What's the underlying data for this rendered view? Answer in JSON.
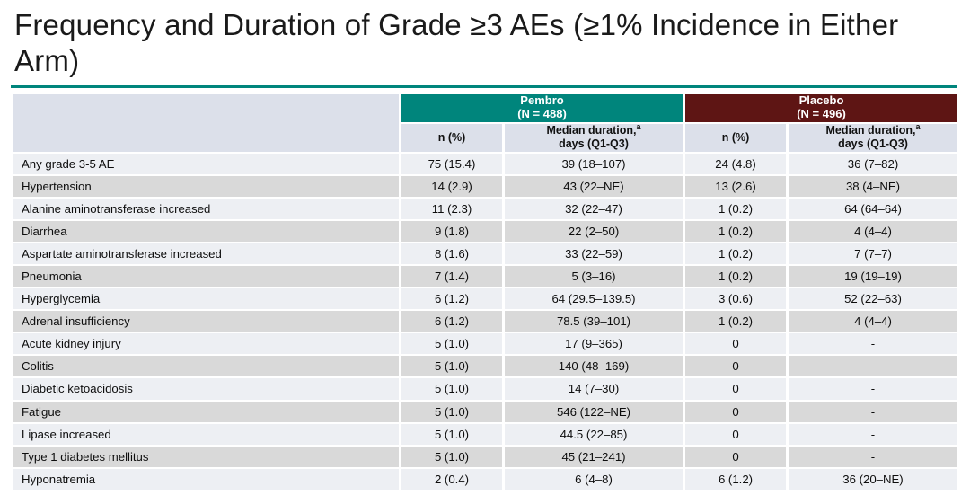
{
  "slide": {
    "title": "Frequency and Duration of Grade ≥3 AEs (≥1% Incidence in Either Arm)",
    "accent_color": "#00857C",
    "pembro_header_color": "#00857C",
    "placebo_header_color": "#5E1514",
    "subheader_bg_color": "#DCE0EA",
    "row_light_color": "#EDEFF3",
    "row_gray_color": "#D9D9D9"
  },
  "table": {
    "groups": [
      {
        "label": "Pembro",
        "sublabel": "(N = 488)"
      },
      {
        "label": "Placebo",
        "sublabel": "(N = 496)"
      }
    ],
    "subheader": {
      "n_pct": "n (%)",
      "median_line1": "Median duration,",
      "median_sup": "a",
      "median_line2": "days (Q1-Q3)"
    }
  },
  "chart_data": {
    "type": "table",
    "title": "Frequency and Duration of Grade ≥3 AEs (≥1% Incidence in Either Arm)",
    "column_groups": [
      {
        "label": "Pembro (N = 488)",
        "columns": [
          "n (%)",
          "Median duration,a days (Q1-Q3)"
        ]
      },
      {
        "label": "Placebo (N = 496)",
        "columns": [
          "n (%)",
          "Median duration,a days (Q1-Q3)"
        ]
      }
    ],
    "rows": [
      [
        "Any grade 3-5 AE",
        "75 (15.4)",
        "39 (18–107)",
        "24 (4.8)",
        "36 (7–82)"
      ],
      [
        "Hypertension",
        "14 (2.9)",
        "43 (22–NE)",
        "13 (2.6)",
        "38 (4–NE)"
      ],
      [
        "Alanine aminotransferase increased",
        "11 (2.3)",
        "32 (22–47)",
        "1 (0.2)",
        "64 (64–64)"
      ],
      [
        "Diarrhea",
        "9 (1.8)",
        "22 (2–50)",
        "1 (0.2)",
        "4 (4–4)"
      ],
      [
        "Aspartate aminotransferase increased",
        "8 (1.6)",
        "33 (22–59)",
        "1 (0.2)",
        "7 (7–7)"
      ],
      [
        "Pneumonia",
        "7 (1.4)",
        "5 (3–16)",
        "1 (0.2)",
        "19 (19–19)"
      ],
      [
        "Hyperglycemia",
        "6 (1.2)",
        "64 (29.5–139.5)",
        "3 (0.6)",
        "52 (22–63)"
      ],
      [
        "Adrenal insufficiency",
        "6 (1.2)",
        "78.5 (39–101)",
        "1 (0.2)",
        "4 (4–4)"
      ],
      [
        "Acute kidney injury",
        "5 (1.0)",
        "17 (9–365)",
        "0",
        "-"
      ],
      [
        "Colitis",
        "5 (1.0)",
        "140 (48–169)",
        "0",
        "-"
      ],
      [
        "Diabetic ketoacidosis",
        "5 (1.0)",
        "14 (7–30)",
        "0",
        "-"
      ],
      [
        "Fatigue",
        "5 (1.0)",
        "546 (122–NE)",
        "0",
        "-"
      ],
      [
        "Lipase increased",
        "5 (1.0)",
        "44.5 (22–85)",
        "0",
        "-"
      ],
      [
        "Type 1 diabetes mellitus",
        "5 (1.0)",
        "45 (21–241)",
        "0",
        "-"
      ],
      [
        "Hyponatremia",
        "2 (0.4)",
        "6 (4–8)",
        "6 (1.2)",
        "36 (20–NE)"
      ]
    ]
  }
}
